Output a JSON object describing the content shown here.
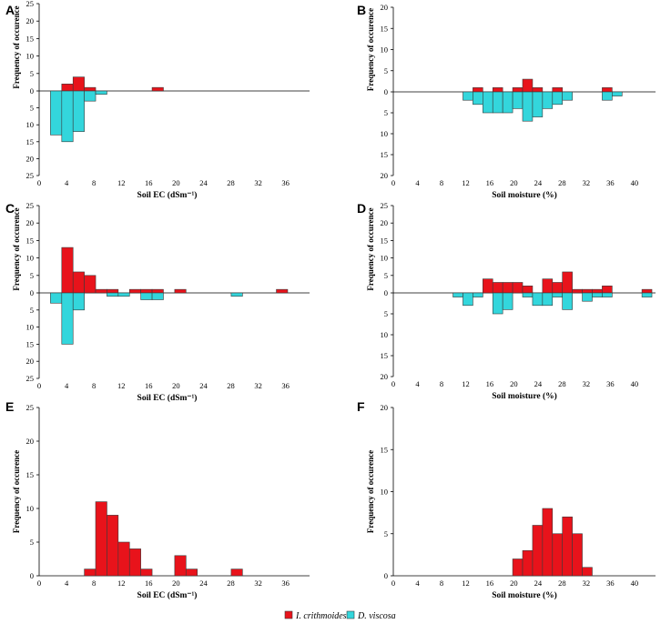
{
  "legend": {
    "series": [
      {
        "name": "I. crithmoides",
        "color": "#e8131b"
      },
      {
        "name": "D. viscosa",
        "color": "#33d6dc"
      }
    ]
  },
  "chart_data": [
    {
      "panel": "A",
      "type": "bar",
      "title": "",
      "xlabel": "Soil EC (dSm⁻¹)",
      "ylabel": "Frequency of occurence",
      "xticks": [
        0,
        4,
        8,
        12,
        16,
        20,
        24,
        28,
        32,
        36
      ],
      "xticklabels": [
        "0",
        "4",
        "8",
        "12",
        "16",
        "20",
        "24",
        "28",
        "32",
        "36"
      ],
      "xlim": [
        0,
        39.5
      ],
      "bin_width": 1.65,
      "ylim_top": 25,
      "ylim_bottom": 25,
      "yticks_top": [
        5,
        10,
        15,
        20,
        25
      ],
      "yticks_bottom": [
        5,
        10,
        15,
        20,
        25
      ],
      "series": [
        {
          "name": "I. crithmoides",
          "bins": [
            3.3,
            4.95,
            6.6,
            8.25,
            16.5
          ],
          "values": [
            2,
            4,
            1,
            0,
            1
          ]
        },
        {
          "name": "D. viscosa",
          "bins": [
            1.65,
            3.3,
            4.95,
            6.6,
            8.25
          ],
          "values": [
            13,
            15,
            12,
            3,
            1
          ]
        }
      ]
    },
    {
      "panel": "B",
      "type": "bar",
      "title": "",
      "xlabel": "Soil moisture (%)",
      "ylabel": "Frequency of occurence",
      "xticks": [
        0,
        4,
        8,
        12,
        16,
        20,
        24,
        28,
        32,
        36,
        40
      ],
      "xticklabels": [
        "0",
        "4",
        "8",
        "12",
        "16",
        "20",
        "24",
        "28",
        "32",
        "36",
        "40"
      ],
      "xlim": [
        0,
        43.5
      ],
      "bin_width": 1.65,
      "ylim_top": 20,
      "ylim_bottom": 20,
      "yticks_top": [
        5,
        10,
        15,
        20
      ],
      "yticks_bottom": [
        5,
        10,
        15,
        20
      ],
      "series": [
        {
          "name": "I. crithmoides",
          "bins": [
            13.2,
            14.85,
            16.5,
            18.15,
            19.8,
            21.45,
            23.1,
            24.75,
            26.4,
            28.05,
            34.65
          ],
          "values": [
            1,
            0,
            1,
            0,
            1,
            3,
            1,
            0,
            1,
            0,
            1
          ]
        },
        {
          "name": "D. viscosa",
          "bins": [
            11.55,
            13.2,
            14.85,
            16.5,
            18.15,
            19.8,
            21.45,
            23.1,
            24.75,
            26.4,
            28.05,
            34.65,
            36.3
          ],
          "values": [
            2,
            3,
            5,
            5,
            5,
            4,
            7,
            6,
            4,
            3,
            2,
            2,
            1
          ]
        }
      ]
    },
    {
      "panel": "C",
      "type": "bar",
      "title": "",
      "xlabel": "Soil EC (dSm⁻¹)",
      "ylabel": "Frequency of occurence",
      "xticks": [
        0,
        4,
        8,
        12,
        16,
        20,
        24,
        28,
        32,
        36
      ],
      "xticklabels": [
        "0",
        "4",
        "8",
        "12",
        "16",
        "20",
        "24",
        "28",
        "32",
        "36"
      ],
      "xlim": [
        0,
        39.5
      ],
      "bin_width": 1.65,
      "ylim_top": 25,
      "ylim_bottom": 25,
      "yticks_top": [
        5,
        10,
        15,
        20,
        25
      ],
      "yticks_bottom": [
        5,
        10,
        15,
        20,
        25
      ],
      "series": [
        {
          "name": "I. crithmoides",
          "bins": [
            3.3,
            4.95,
            6.6,
            8.25,
            9.9,
            13.2,
            14.85,
            16.5,
            19.8,
            34.65
          ],
          "values": [
            13,
            6,
            5,
            1,
            1,
            1,
            1,
            1,
            1,
            1
          ]
        },
        {
          "name": "D. viscosa",
          "bins": [
            1.65,
            3.3,
            4.95,
            9.9,
            11.55,
            14.85,
            16.5,
            28.05
          ],
          "values": [
            3,
            15,
            5,
            1,
            1,
            2,
            2,
            1
          ]
        }
      ]
    },
    {
      "panel": "D",
      "type": "bar",
      "title": "",
      "xlabel": "Soil moisture (%)",
      "ylabel": "Frequency of occurence",
      "xticks": [
        0,
        4,
        8,
        12,
        16,
        20,
        24,
        28,
        32,
        36,
        40
      ],
      "xticklabels": [
        "0",
        "4",
        "8",
        "12",
        "16",
        "20",
        "24",
        "28",
        "32",
        "36",
        "40"
      ],
      "xlim": [
        0,
        43.5
      ],
      "bin_width": 1.65,
      "ylim_top": 25,
      "ylim_bottom": 20,
      "yticks_top": [
        5,
        10,
        15,
        20,
        25
      ],
      "yticks_bottom": [
        5,
        10,
        15,
        20
      ],
      "series": [
        {
          "name": "I. crithmoides",
          "bins": [
            14.85,
            16.5,
            18.15,
            19.8,
            21.45,
            24.75,
            26.4,
            28.05,
            29.7,
            31.35,
            33.0,
            34.65,
            41.25
          ],
          "values": [
            4,
            3,
            3,
            3,
            2,
            4,
            3,
            6,
            1,
            1,
            1,
            2,
            1
          ]
        },
        {
          "name": "D. viscosa",
          "bins": [
            9.9,
            11.55,
            13.2,
            16.5,
            18.15,
            21.45,
            23.1,
            24.75,
            26.4,
            28.05,
            31.35,
            33.0,
            34.65,
            41.25
          ],
          "values": [
            1,
            3,
            1,
            5,
            4,
            1,
            3,
            3,
            1,
            4,
            2,
            1,
            1,
            1
          ]
        }
      ]
    },
    {
      "panel": "E",
      "type": "bar",
      "title": "",
      "xlabel": "Soil EC (dSm⁻¹)",
      "ylabel": "Frequency of occurence",
      "xticks": [
        0,
        4,
        8,
        12,
        16,
        20,
        24,
        28,
        32,
        36
      ],
      "xticklabels": [
        "0",
        "4",
        "8",
        "12",
        "16",
        "20",
        "24",
        "28",
        "32",
        "36"
      ],
      "xlim": [
        0,
        39.5
      ],
      "bin_width": 1.65,
      "ylim_top": 25,
      "yticks_top": [
        0,
        5,
        10,
        15,
        20,
        25
      ],
      "series": [
        {
          "name": "I. crithmoides",
          "bins": [
            6.6,
            8.25,
            9.9,
            11.55,
            13.2,
            14.85,
            16.5,
            19.8,
            21.45,
            28.05
          ],
          "values": [
            1,
            11,
            9,
            5,
            4,
            1,
            0,
            3,
            1,
            1
          ]
        }
      ]
    },
    {
      "panel": "F",
      "type": "bar",
      "title": "",
      "xlabel": "Soil moisture (%)",
      "ylabel": "Frequency of occurence",
      "xticks": [
        0,
        4,
        8,
        12,
        16,
        20,
        24,
        28,
        32,
        36,
        40
      ],
      "xticklabels": [
        "0",
        "4",
        "8",
        "12",
        "16",
        "20",
        "24",
        "28",
        "32",
        "36",
        "40"
      ],
      "xlim": [
        0,
        43.5
      ],
      "bin_width": 1.65,
      "ylim_top": 20,
      "yticks_top": [
        0,
        5,
        10,
        15,
        20
      ],
      "series": [
        {
          "name": "I. crithmoides",
          "bins": [
            19.8,
            21.45,
            23.1,
            24.75,
            26.4,
            28.05,
            29.7,
            31.35,
            33.0
          ],
          "values": [
            2,
            3,
            6,
            8,
            5,
            7,
            5,
            1,
            0
          ]
        }
      ]
    }
  ]
}
